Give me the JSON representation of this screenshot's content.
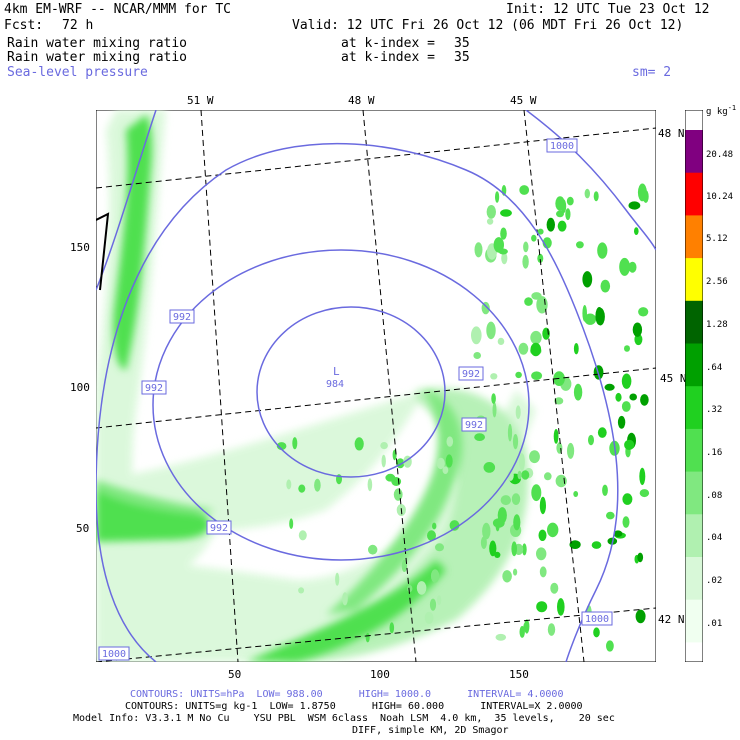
{
  "header": {
    "model_title": "4km EM-WRF -- NCAR/MMM for TC",
    "init": "Init: 12 UTC Tue 23 Oct 12",
    "fcst_label": "Fcst:",
    "fcst_value": "72 h",
    "valid": "Valid: 12 UTC Fri 26 Oct 12 (06 MDT Fri 26 Oct 12)",
    "field1_name": "Rain water mixing ratio",
    "field1_level": "at k-index =",
    "field1_level_value": "35",
    "field2_name": "Rain water mixing ratio",
    "field2_level": "at k-index =",
    "field2_level_value": "35",
    "field3_name": "Sea-level pressure",
    "smoothing": "sm= 2"
  },
  "map": {
    "longitude_labels": [
      "51 W",
      "48 W",
      "45 W"
    ],
    "latitude_labels": [
      "48 N",
      "45 N",
      "42 N"
    ],
    "x_ticks": [
      "50",
      "100",
      "150"
    ],
    "y_ticks": [
      "150",
      "100",
      "50"
    ],
    "low_center": {
      "label": "L",
      "value": "984"
    },
    "isobar_labels": [
      "992",
      "992",
      "992",
      "992",
      "992",
      "1000",
      "1000",
      "1000"
    ]
  },
  "colorbar": {
    "units": "g kg",
    "units_exp": "-1",
    "levels": [
      "20.48",
      "10.24",
      "5.12",
      "2.56",
      "1.28",
      ".64",
      ".32",
      ".16",
      ".08",
      ".04",
      ".02",
      ".01"
    ],
    "colors": [
      "#800080",
      "#ff0000",
      "#ff8000",
      "#ffff00",
      "#006400",
      "#00a000",
      "#20d020",
      "#50e050",
      "#80e880",
      "#b0f0b0",
      "#d8f8d8",
      "#f0fff0",
      "#ffffff"
    ]
  },
  "footer": {
    "contours_slp": "CONTOURS: UNITS=hPa  LOW= 988.00      HIGH= 1000.0      INTERVAL= 4.0000",
    "contours_rain": "CONTOURS: UNITS=g kg-1  LOW= 1.8750      HIGH= 60.000      INTERVAL=X 2.0000",
    "model_info": "Model Info: V3.3.1 M No Cu    YSU PBL  WSM 6class  Noah LSM  4.0 km,  35 levels,    20 sec",
    "model_info2": "DIFF, simple KM, 2D Smagor"
  },
  "colors": {
    "isobar": "#6a6adf",
    "grid": "#000000"
  }
}
